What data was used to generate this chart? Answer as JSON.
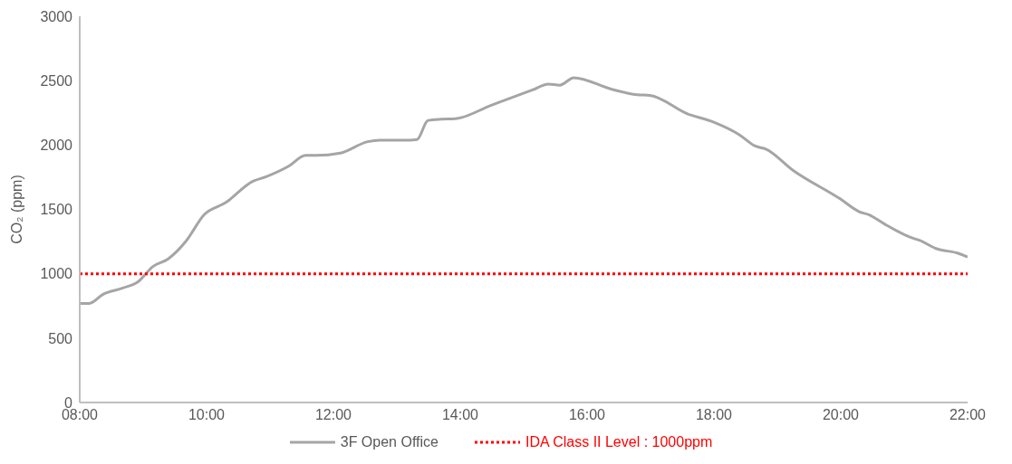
{
  "chart_data": {
    "type": "line",
    "ylabel": "CO₂ (ppm)",
    "xlim": [
      8,
      22
    ],
    "xticks": [
      {
        "value": 8,
        "label": "08:00"
      },
      {
        "value": 10,
        "label": "10:00"
      },
      {
        "value": 12,
        "label": "12:00"
      },
      {
        "value": 14,
        "label": "14:00"
      },
      {
        "value": 16,
        "label": "16:00"
      },
      {
        "value": 18,
        "label": "18:00"
      },
      {
        "value": 20,
        "label": "20:00"
      },
      {
        "value": 22,
        "label": "22:00"
      }
    ],
    "ylim": [
      0,
      3000
    ],
    "yticks": [
      0,
      500,
      1000,
      1500,
      2000,
      2500,
      3000
    ],
    "legend": "bottom",
    "marker": "none",
    "series": [
      {
        "name": "3F Open Office",
        "color": "#a5a5a5",
        "line_style": "solid",
        "x": [
          8,
          8.15,
          8.37,
          8.68,
          8.92,
          9.15,
          9.39,
          9.68,
          9.96,
          10.3,
          10.73,
          10.94,
          11.3,
          11.56,
          11.73,
          12.11,
          12.54,
          12.73,
          13.2,
          13.32,
          13.49,
          13.7,
          13.92,
          14.49,
          15.14,
          15.39,
          15.57,
          15.79,
          16.39,
          16.79,
          16.99,
          17.59,
          17.99,
          18.4,
          18.65,
          18.82,
          19.24,
          19.99,
          20.29,
          20.45,
          20.7,
          21.1,
          21.25,
          21.5,
          21.85,
          22
        ],
        "values": [
          770,
          770,
          841,
          889,
          938,
          1055,
          1114,
          1256,
          1458,
          1552,
          1718,
          1754,
          1837,
          1920,
          1920,
          1938,
          2026,
          2038,
          2038,
          2043,
          2190,
          2200,
          2204,
          2309,
          2428,
          2473,
          2465,
          2523,
          2433,
          2391,
          2386,
          2241,
          2179,
          2080,
          1992,
          1968,
          1806,
          1582,
          1482,
          1457,
          1383,
          1283,
          1258,
          1196,
          1159,
          1130
        ]
      },
      {
        "name": "IDA Class II Level : 1000ppm",
        "color": "#ff0000",
        "line_style": "dotted",
        "x": [
          8,
          22
        ],
        "values": [
          1000,
          1000
        ]
      }
    ]
  }
}
